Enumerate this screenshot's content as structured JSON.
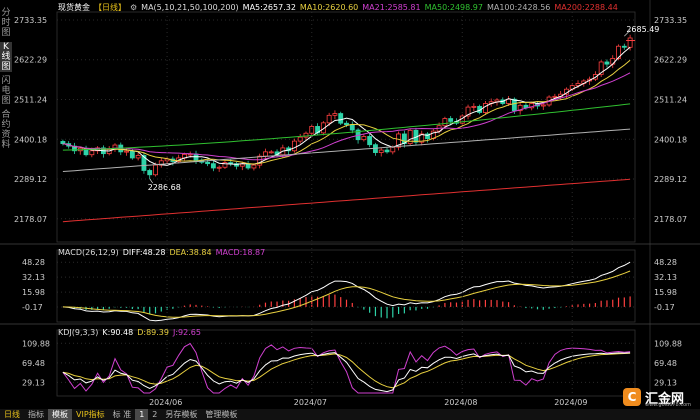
{
  "title": "现货黄金",
  "period_label": "日线",
  "ma_header": {
    "ma_group": "MA(5,10,21,50,100,200)",
    "ma5": "MA5:2657.32",
    "ma10": "MA10:2620.60",
    "ma21": "MA21:2585.81",
    "ma50": "MA50:2498.97",
    "ma100": "MA100:2428.56",
    "ma200": "MA200:2288.44"
  },
  "side_tabs": [
    "分时图",
    "K线图",
    "闪电图",
    "合约资料"
  ],
  "macd_header": {
    "name": "MACD(26,12,9)",
    "diff": "DIFF:48.28",
    "dea": "DEA:38.84",
    "macd": "MACD:18.87"
  },
  "kdj_header": {
    "name": "KDJ(9,3,3)",
    "k": "K:90.48",
    "d": "D:89.39",
    "j": "J:92.65"
  },
  "bottom_tabs": {
    "period": "日线",
    "t1": "指标",
    "t2": "模板",
    "t3": "VIP指标",
    "t4": "1",
    "t5": "2",
    "t6": "另存模板",
    "t7": "管理模板"
  },
  "watermark": {
    "text": "汇金网",
    "url": "www.gold678.com"
  },
  "colors": {
    "up": "#ff4040",
    "down": "#2ed3a8",
    "ma5": "#ffffff",
    "ma10": "#e8d040",
    "ma21": "#d040d0",
    "ma50": "#30c030",
    "ma100": "#b0b0b0",
    "ma200": "#e03030"
  },
  "chart_data": [
    {
      "type": "candlestick",
      "title": "",
      "x_ticks": [
        "2024/06",
        "2024/07",
        "2024/08",
        "2024/09"
      ],
      "y_ticks": [
        "2733.35",
        "2622.29",
        "2511.24",
        "2400.18",
        "2289.12",
        "2178.07"
      ],
      "ylim": [
        2130,
        2750
      ],
      "annotations": {
        "high": "2685.49",
        "low": "2286.68"
      },
      "candles_close": [
        2388,
        2381,
        2368,
        2375,
        2357,
        2368,
        2376,
        2360,
        2372,
        2384,
        2365,
        2367,
        2348,
        2355,
        2313,
        2301,
        2328,
        2340,
        2345,
        2338,
        2348,
        2358,
        2359,
        2342,
        2336,
        2332,
        2320,
        2322,
        2335,
        2332,
        2325,
        2331,
        2320,
        2328,
        2353,
        2365,
        2365,
        2357,
        2376,
        2368,
        2395,
        2406,
        2417,
        2436,
        2418,
        2446,
        2467,
        2472,
        2445,
        2441,
        2426,
        2399,
        2408,
        2385,
        2363,
        2370,
        2365,
        2378,
        2415,
        2388,
        2425,
        2392,
        2415,
        2402,
        2423,
        2438,
        2458,
        2450,
        2445,
        2465,
        2490,
        2492,
        2475,
        2500,
        2505,
        2510,
        2500,
        2512,
        2480,
        2495,
        2488,
        2500,
        2493,
        2496,
        2518,
        2520,
        2526,
        2540,
        2550,
        2556,
        2563,
        2568,
        2581,
        2616,
        2610,
        2626,
        2660,
        2657,
        2683
      ],
      "ma_lines_last": {
        "ma5": 2657.32,
        "ma10": 2620.6,
        "ma21": 2585.81,
        "ma50": 2498.97,
        "ma100": 2428.56,
        "ma200": 2288.44
      }
    },
    {
      "type": "bar+line",
      "title": "MACD(26,12,9)",
      "y_ticks": [
        "48.28",
        "32.13",
        "15.98",
        "-0.17"
      ],
      "ylim": [
        -12,
        55
      ],
      "series": [
        {
          "name": "DIFF",
          "last": 48.28
        },
        {
          "name": "DEA",
          "last": 38.84
        },
        {
          "name": "MACD",
          "last": 18.87
        }
      ]
    },
    {
      "type": "line",
      "title": "KDJ(9,3,3)",
      "y_ticks": [
        "109.88",
        "69.48",
        "29.13"
      ],
      "ylim": [
        5,
        125
      ],
      "series": [
        {
          "name": "K",
          "last": 90.48
        },
        {
          "name": "D",
          "last": 89.39
        },
        {
          "name": "J",
          "last": 92.65
        }
      ]
    }
  ]
}
